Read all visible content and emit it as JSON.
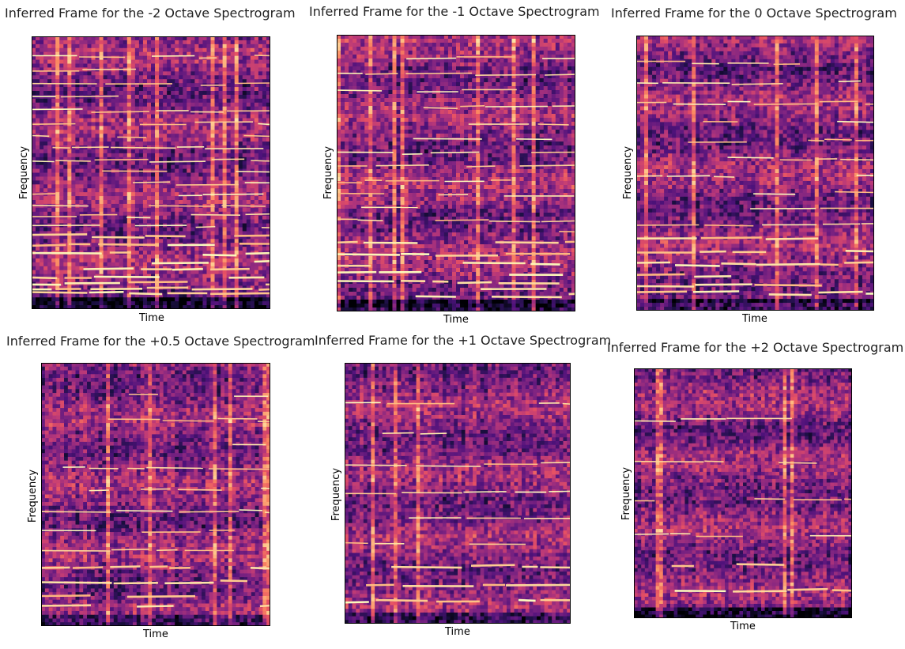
{
  "chart_data": [
    {
      "type": "heatmap",
      "title": "Inferred Frame for the -2 Octave Spectrogram",
      "xlabel": "Time",
      "ylabel": "Frequency",
      "colormap": "magma",
      "harmonic_count": 24,
      "bright_band": "low"
    },
    {
      "type": "heatmap",
      "title": "Inferred Frame for the -1 Octave Spectrogram",
      "xlabel": "Time",
      "ylabel": "Frequency",
      "colormap": "magma",
      "harmonic_count": 20,
      "bright_band": "low"
    },
    {
      "type": "heatmap",
      "title": "Inferred Frame for the 0 Octave Spectrogram",
      "xlabel": "Time",
      "ylabel": "Frequency",
      "colormap": "magma",
      "harmonic_count": 16,
      "bright_band": "low"
    },
    {
      "type": "heatmap",
      "title": "Inferred Frame for the +0.5 Octave Spectrogram",
      "xlabel": "Time",
      "ylabel": "Frequency",
      "colormap": "magma",
      "harmonic_count": 12,
      "bright_band": "low"
    },
    {
      "type": "heatmap",
      "title": "Inferred Frame for the +1 Octave Spectrogram",
      "xlabel": "Time",
      "ylabel": "Frequency",
      "colormap": "magma",
      "harmonic_count": 9,
      "bright_band": "low"
    },
    {
      "type": "heatmap",
      "title": "Inferred Frame for the +2 Octave Spectrogram",
      "xlabel": "Time",
      "ylabel": "Frequency",
      "colormap": "magma",
      "harmonic_count": 6,
      "bright_band": "low"
    }
  ]
}
